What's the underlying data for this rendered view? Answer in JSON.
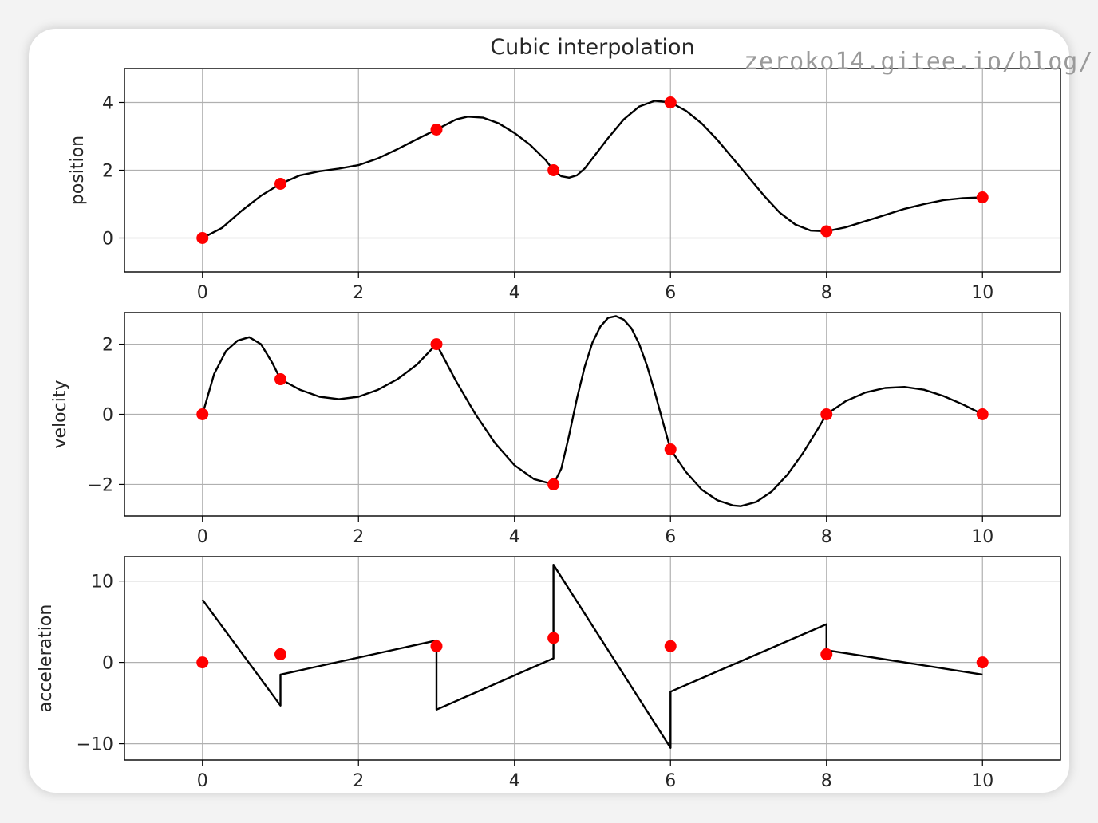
{
  "watermark": "zeroko14.gitee.io/blog/",
  "colors": {
    "curve": "#000000",
    "points": "#ff0000",
    "grid": "#b0b0b0",
    "frame": "#000000"
  },
  "chart_data": [
    {
      "type": "line",
      "title": "Cubic interpolation",
      "xlabel": "",
      "ylabel": "position",
      "xlim": [
        -1,
        11
      ],
      "ylim": [
        -1,
        5
      ],
      "xticks": [
        0,
        2,
        4,
        6,
        8,
        10
      ],
      "yticks": [
        0,
        2,
        4
      ],
      "ytick_labels": [
        "0",
        "2",
        "4"
      ],
      "grid": true,
      "points": {
        "x": [
          0,
          1,
          3,
          4.5,
          6,
          8,
          10
        ],
        "y": [
          0,
          1.6,
          3.2,
          2,
          4,
          0.2,
          1.2
        ]
      },
      "curve": {
        "x": [
          0,
          0.25,
          0.5,
          0.75,
          1,
          1.25,
          1.5,
          1.75,
          2,
          2.25,
          2.5,
          2.75,
          3,
          3.25,
          3.4,
          3.6,
          3.8,
          4,
          4.2,
          4.4,
          4.5,
          4.6,
          4.7,
          4.8,
          4.9,
          5,
          5.2,
          5.4,
          5.6,
          5.8,
          6,
          6.2,
          6.4,
          6.6,
          6.8,
          7,
          7.2,
          7.4,
          7.6,
          7.8,
          8,
          8.25,
          8.5,
          8.75,
          9,
          9.25,
          9.5,
          9.75,
          10
        ],
        "y": [
          0,
          0.3,
          0.8,
          1.25,
          1.6,
          1.85,
          1.97,
          2.05,
          2.15,
          2.35,
          2.62,
          2.92,
          3.2,
          3.5,
          3.58,
          3.55,
          3.38,
          3.1,
          2.75,
          2.3,
          2.0,
          1.82,
          1.78,
          1.85,
          2.05,
          2.35,
          2.95,
          3.5,
          3.88,
          4.05,
          4.0,
          3.75,
          3.38,
          2.9,
          2.35,
          1.8,
          1.25,
          0.75,
          0.4,
          0.22,
          0.2,
          0.32,
          0.5,
          0.68,
          0.86,
          1.0,
          1.12,
          1.18,
          1.2
        ]
      }
    },
    {
      "type": "line",
      "title": "",
      "xlabel": "",
      "ylabel": "velocity",
      "xlim": [
        -1,
        11
      ],
      "ylim": [
        -2.9,
        2.9
      ],
      "xticks": [
        0,
        2,
        4,
        6,
        8,
        10
      ],
      "yticks": [
        -2,
        0,
        2
      ],
      "ytick_labels": [
        "−2",
        "0",
        "2"
      ],
      "grid": true,
      "points": {
        "x": [
          0,
          1,
          3,
          4.5,
          6,
          8,
          10
        ],
        "y": [
          0,
          1,
          2,
          -2,
          -1,
          0,
          0
        ]
      },
      "curve": {
        "x": [
          0,
          0.15,
          0.3,
          0.45,
          0.6,
          0.75,
          0.9,
          1,
          1.25,
          1.5,
          1.75,
          2,
          2.25,
          2.5,
          2.75,
          3,
          3.25,
          3.5,
          3.75,
          4,
          4.25,
          4.5,
          4.6,
          4.7,
          4.8,
          4.9,
          5,
          5.1,
          5.2,
          5.3,
          5.4,
          5.5,
          5.6,
          5.7,
          5.8,
          5.9,
          6,
          6.2,
          6.4,
          6.6,
          6.8,
          6.9,
          7.1,
          7.3,
          7.5,
          7.7,
          7.9,
          8,
          8.25,
          8.5,
          8.75,
          9,
          9.25,
          9.5,
          9.75,
          10
        ],
        "y": [
          0,
          1.15,
          1.8,
          2.1,
          2.2,
          2.0,
          1.45,
          1.0,
          0.7,
          0.5,
          0.43,
          0.5,
          0.7,
          1.0,
          1.42,
          2.0,
          0.95,
          0.0,
          -0.82,
          -1.45,
          -1.85,
          -2.0,
          -1.55,
          -0.6,
          0.45,
          1.35,
          2.05,
          2.5,
          2.75,
          2.8,
          2.7,
          2.45,
          2.0,
          1.38,
          0.62,
          -0.2,
          -1.0,
          -1.65,
          -2.15,
          -2.45,
          -2.6,
          -2.62,
          -2.5,
          -2.2,
          -1.72,
          -1.1,
          -0.38,
          0,
          0.38,
          0.62,
          0.75,
          0.78,
          0.7,
          0.52,
          0.28,
          0
        ]
      }
    },
    {
      "type": "line",
      "title": "",
      "xlabel": "",
      "ylabel": "acceleration",
      "xlim": [
        -1,
        11
      ],
      "ylim": [
        -12,
        13
      ],
      "xticks": [
        0,
        2,
        4,
        6,
        8,
        10
      ],
      "yticks": [
        -10,
        0,
        10
      ],
      "ytick_labels": [
        "−10",
        "0",
        "10"
      ],
      "grid": true,
      "points": {
        "x": [
          0,
          1,
          3,
          4.5,
          6,
          8,
          10
        ],
        "y": [
          0,
          1,
          2,
          3,
          2,
          1,
          0
        ]
      },
      "curve": {
        "x": [
          0,
          1,
          1,
          3,
          3,
          4.5,
          4.5,
          6,
          6,
          8,
          8,
          10
        ],
        "y": [
          7.7,
          -5.3,
          -1.5,
          2.7,
          -5.8,
          0.5,
          12.0,
          -10.5,
          -3.6,
          4.7,
          1.5,
          -1.5
        ]
      }
    }
  ]
}
